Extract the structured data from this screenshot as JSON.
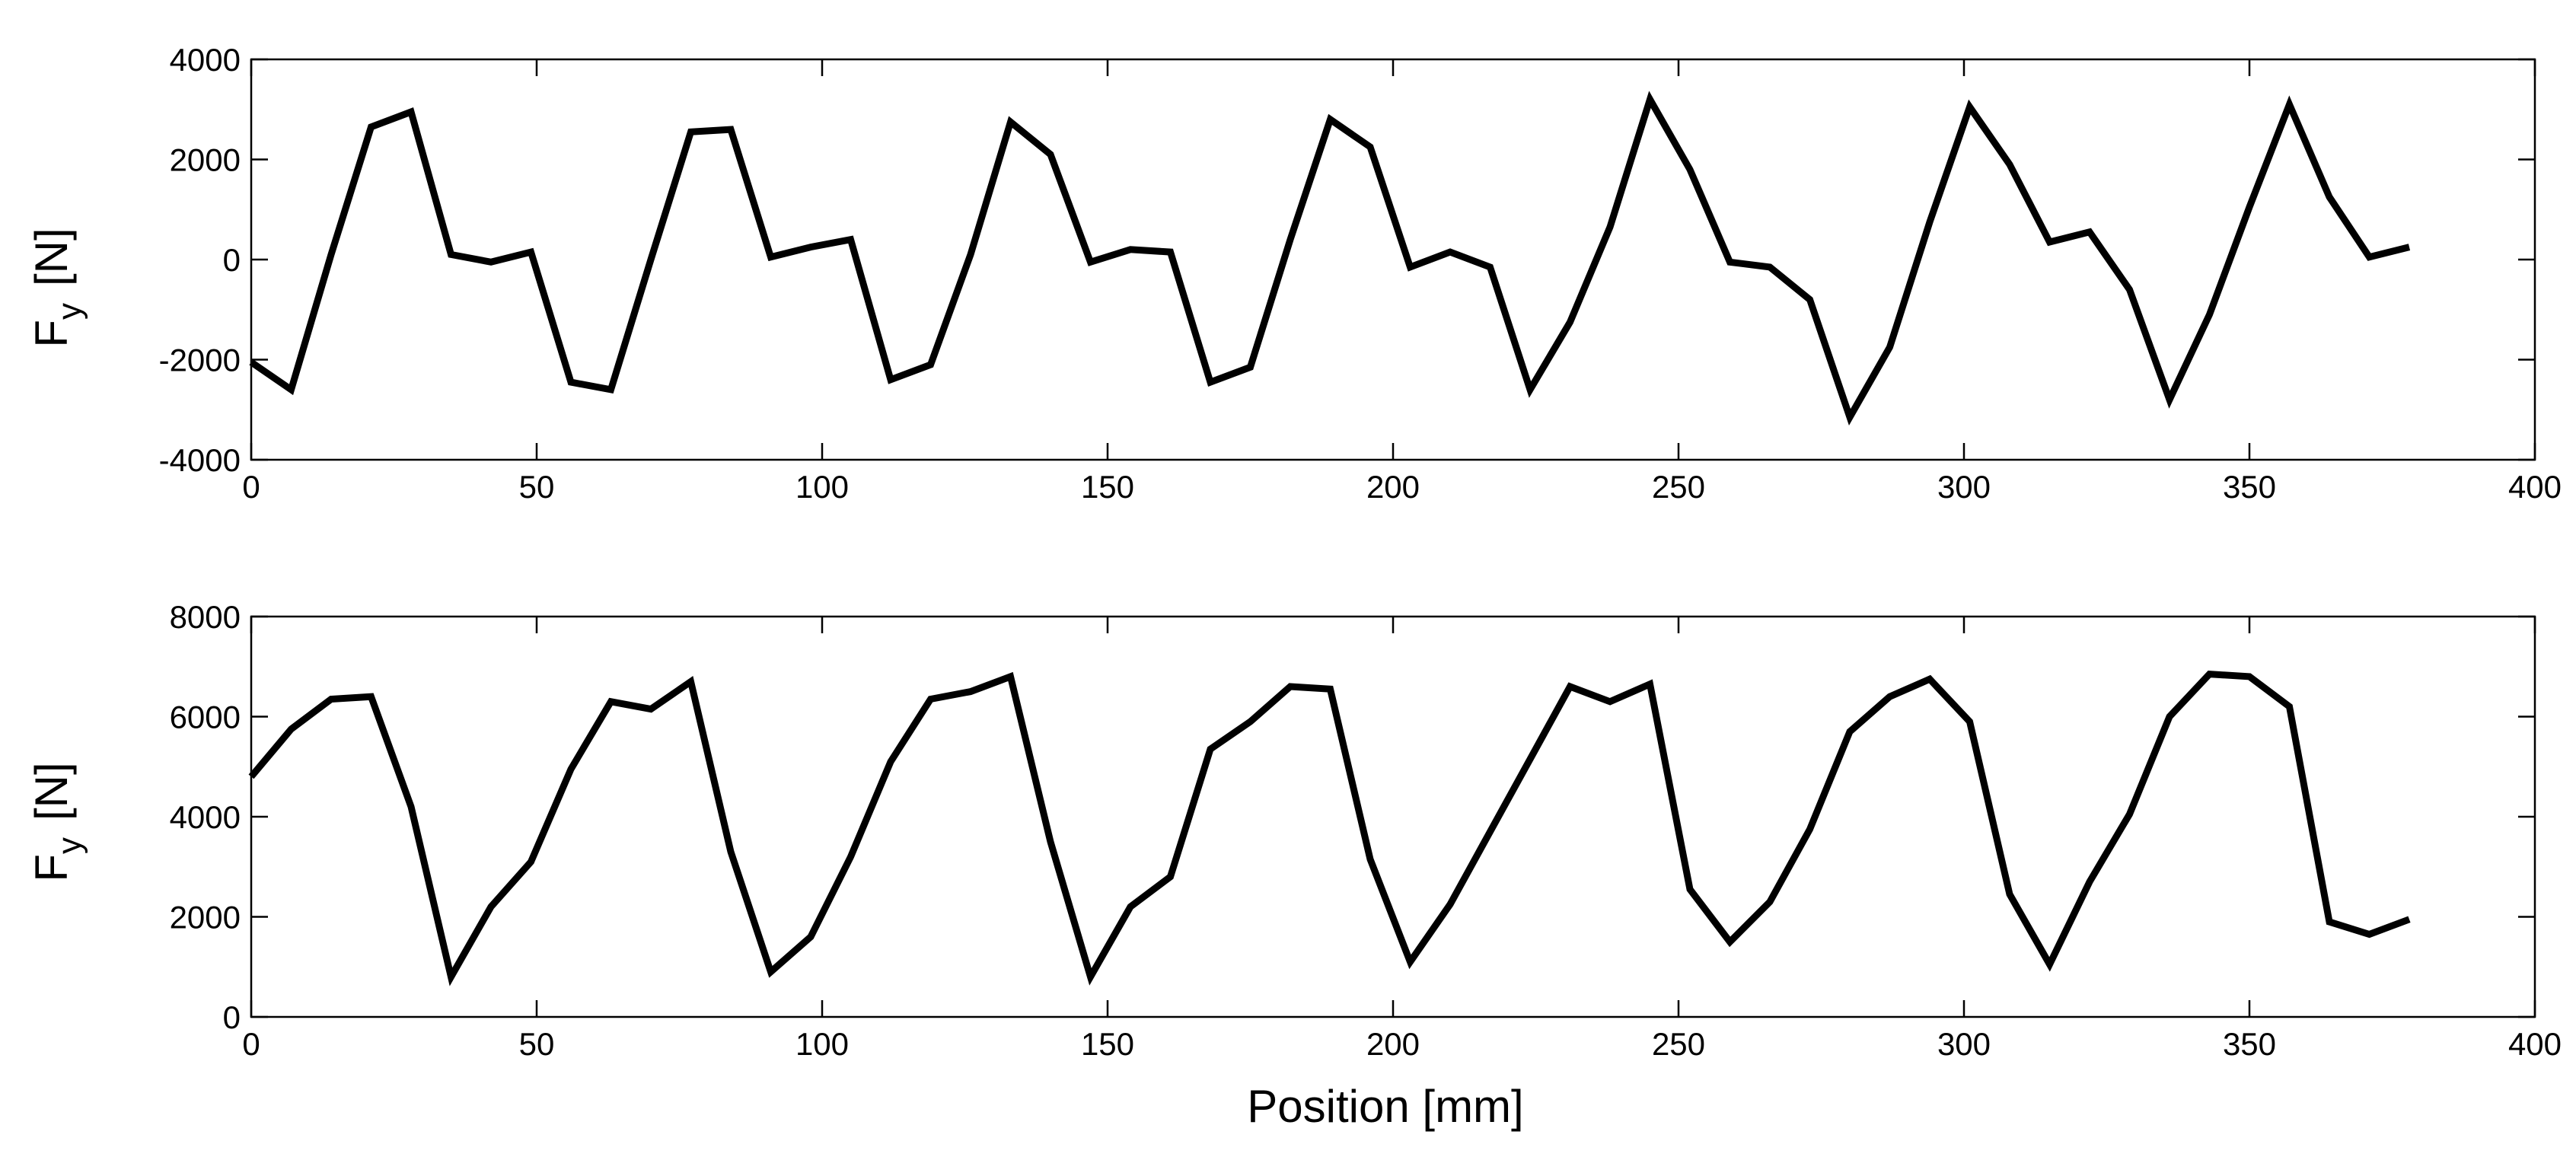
{
  "chart_data": [
    {
      "type": "line",
      "title": "",
      "xlabel": "",
      "ylabel_main": "F",
      "ylabel_subscript": "y",
      "ylabel_unit": "[N]",
      "xlim": [
        0,
        400
      ],
      "ylim": [
        -4000,
        4000
      ],
      "xticks": [
        0,
        50,
        100,
        150,
        200,
        250,
        300,
        350,
        400
      ],
      "yticks": [
        -4000,
        -2000,
        0,
        2000,
        4000
      ],
      "grid": false,
      "series": [
        {
          "name": "Fy",
          "color": "#000000",
          "x": [
            0,
            7,
            14,
            21,
            28,
            35,
            42,
            49,
            56,
            63,
            70,
            77,
            84,
            91,
            98,
            105,
            112,
            119,
            126,
            133,
            140,
            147,
            154,
            161,
            168,
            175,
            182,
            189,
            196,
            203,
            210,
            217,
            224,
            231,
            238,
            245,
            252,
            259,
            266,
            273,
            280,
            287,
            294,
            301,
            308,
            315,
            322,
            329,
            336,
            343,
            350,
            357,
            364,
            371,
            378
          ],
          "y": [
            -2050,
            -2600,
            100,
            2650,
            2950,
            100,
            -50,
            150,
            -2450,
            -2600,
            0,
            2550,
            2600,
            50,
            250,
            400,
            -2400,
            -2100,
            100,
            2750,
            2100,
            -50,
            200,
            150,
            -2450,
            -2150,
            400,
            2800,
            2250,
            -150,
            150,
            -150,
            -2600,
            -1250,
            650,
            3200,
            1800,
            -50,
            -150,
            -800,
            -3150,
            -1750,
            750,
            3050,
            1900,
            350,
            550,
            -600,
            -2800,
            -1100,
            1050,
            3100,
            1250,
            50,
            250
          ]
        }
      ]
    },
    {
      "type": "line",
      "title": "",
      "xlabel": "Position  [mm]",
      "ylabel_main": "F",
      "ylabel_subscript": "y",
      "ylabel_unit": "[N]",
      "xlim": [
        0,
        400
      ],
      "ylim": [
        0,
        8000
      ],
      "xticks": [
        0,
        50,
        100,
        150,
        200,
        250,
        300,
        350,
        400
      ],
      "yticks": [
        0,
        2000,
        4000,
        6000,
        8000
      ],
      "grid": false,
      "series": [
        {
          "name": "Fy",
          "color": "#000000",
          "x": [
            0,
            7,
            14,
            21,
            28,
            35,
            42,
            49,
            56,
            63,
            70,
            77,
            84,
            91,
            98,
            105,
            112,
            119,
            126,
            133,
            140,
            147,
            154,
            161,
            168,
            175,
            182,
            189,
            196,
            203,
            210,
            217,
            224,
            231,
            238,
            245,
            252,
            259,
            266,
            273,
            280,
            287,
            294,
            301,
            308,
            315,
            322,
            329,
            336,
            343,
            350,
            357,
            364,
            371,
            378
          ],
          "y": [
            4800,
            5750,
            6350,
            6400,
            4200,
            800,
            2200,
            3100,
            4950,
            6300,
            6150,
            6700,
            3300,
            900,
            1600,
            3200,
            5100,
            6350,
            6500,
            6800,
            3500,
            800,
            2200,
            2800,
            5350,
            5900,
            6600,
            6550,
            3150,
            1100,
            2250,
            3700,
            5150,
            6600,
            6300,
            6650,
            2550,
            1500,
            2300,
            3750,
            5700,
            6400,
            6750,
            5900,
            2450,
            1050,
            2700,
            4050,
            6000,
            6850,
            6800,
            6200,
            1900,
            1650,
            1950
          ]
        }
      ]
    }
  ]
}
